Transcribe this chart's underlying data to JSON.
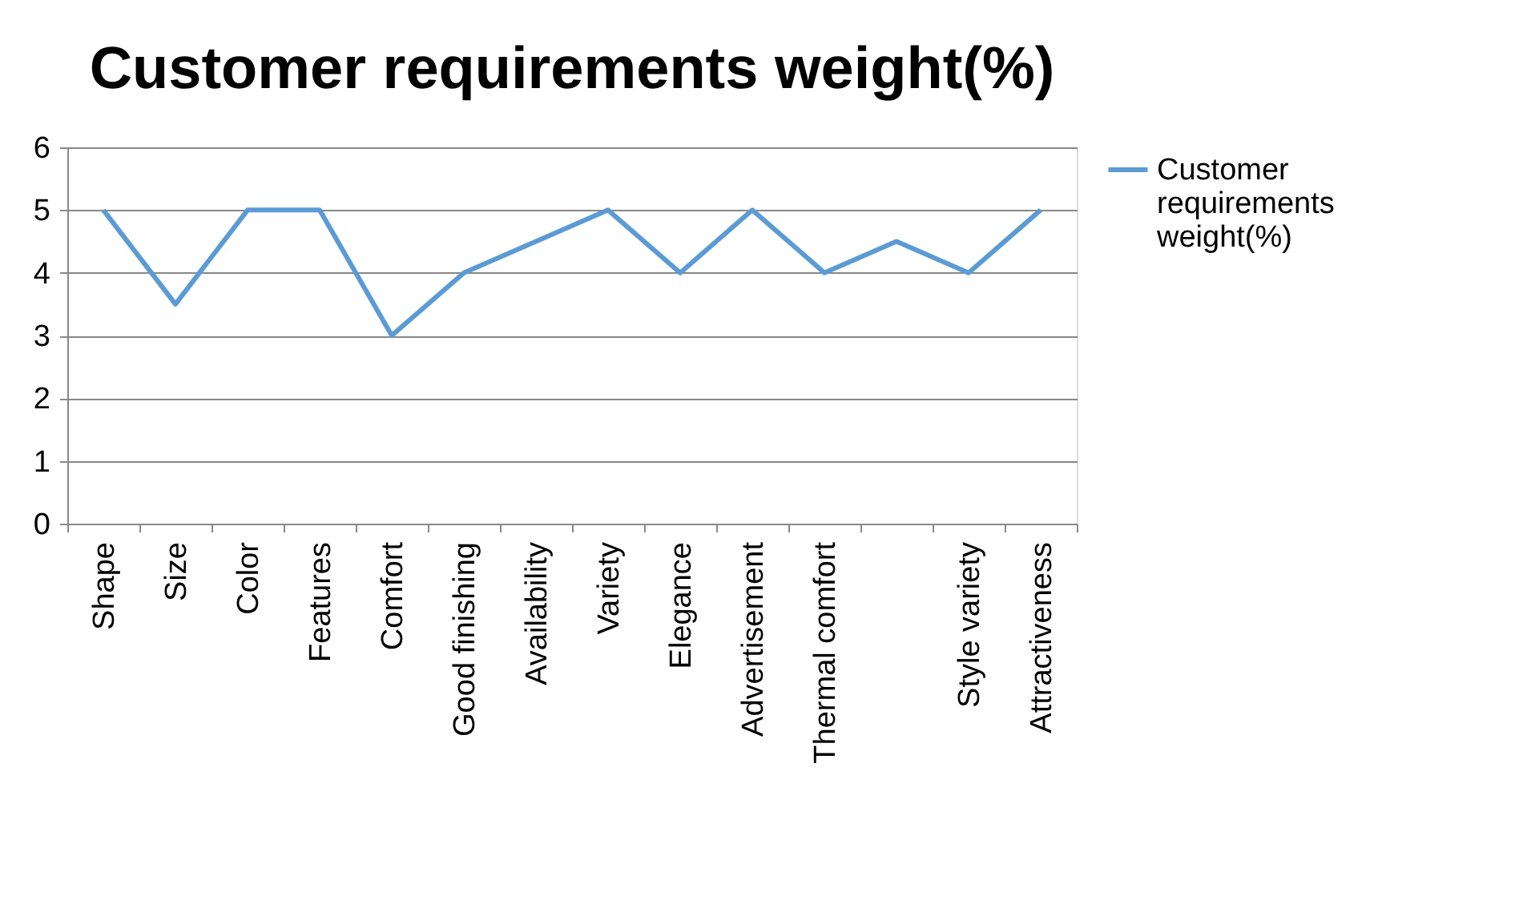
{
  "chart_data": {
    "type": "line",
    "title": "Customer  requirements weight(%)",
    "categories": [
      "Shape",
      "Size",
      "Color",
      "Features",
      "Comfort",
      "Good finishing",
      "Availability",
      "Variety",
      "Elegance",
      "Advertisement",
      "Thermal comfort",
      null,
      "Style variety",
      "Attractiveness"
    ],
    "series": [
      {
        "name": "Customer requirements weight(%)",
        "color": "#5b9bd5",
        "values": [
          5,
          3.5,
          5,
          5,
          3,
          4,
          4.5,
          5,
          4,
          5,
          4,
          4.5,
          4,
          5
        ]
      }
    ],
    "ylim": [
      0,
      6
    ],
    "yticks": [
      0,
      1,
      2,
      3,
      4,
      5,
      6
    ],
    "grid": "y",
    "legend": "right",
    "marker": "none",
    "line_style": "solid"
  }
}
